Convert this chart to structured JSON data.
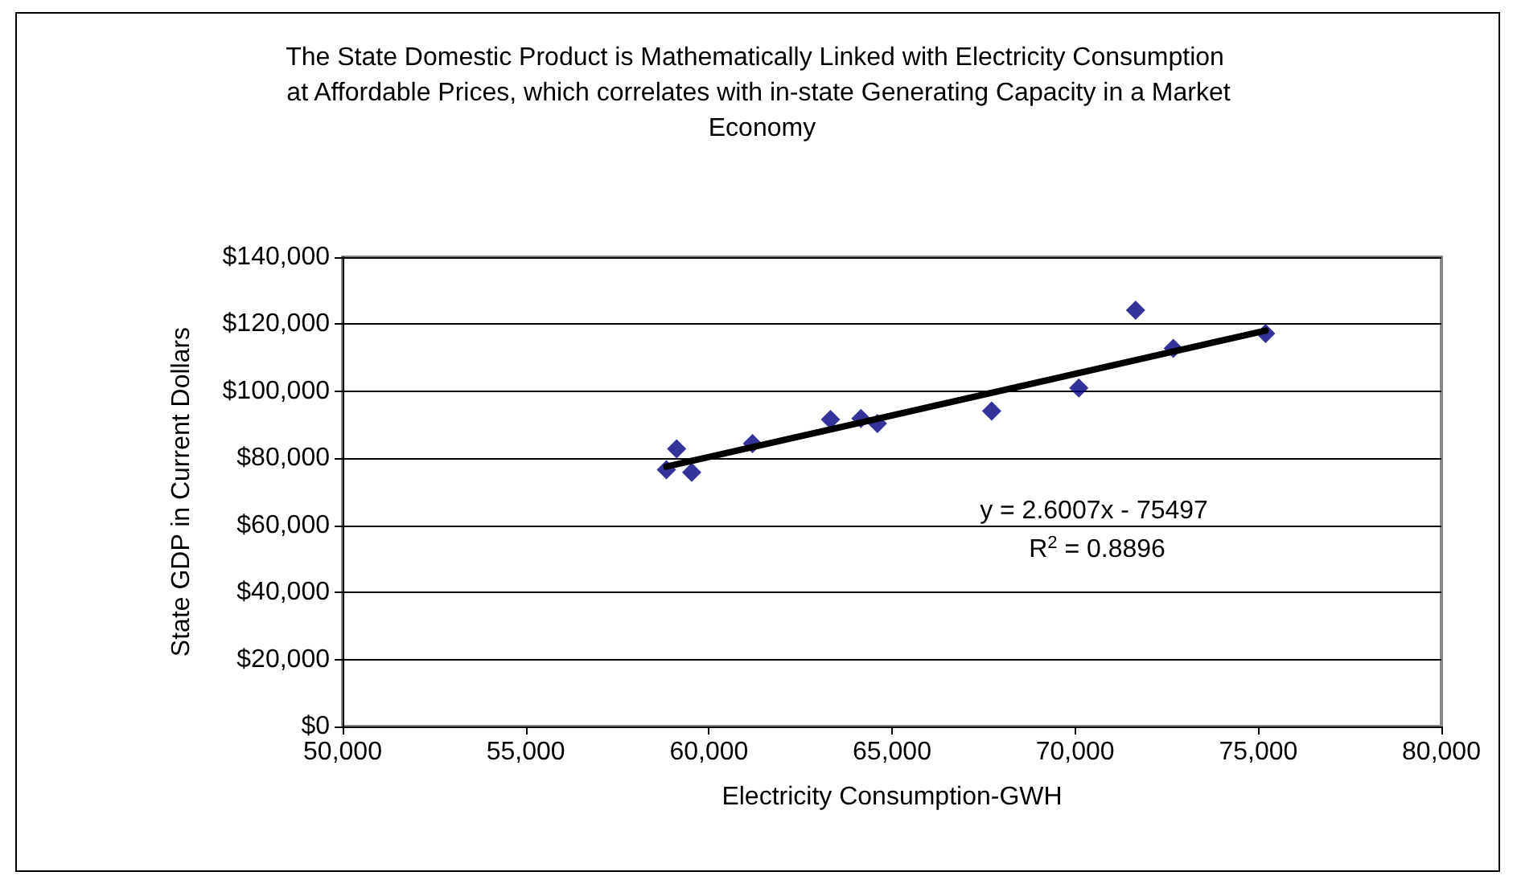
{
  "chart_data": {
    "type": "scatter",
    "title": "The State Domestic Product is Mathematically Linked with Electricity Consumption at Affordable Prices, which correlates with in-state Generating Capacity in a Market Economy",
    "xlabel": "Electricity Consumption-GWH",
    "ylabel": "State GDP in Current Dollars",
    "series": [
      {
        "color": "#000080",
        "marker": "diamond",
        "x": [
          58840,
          59120,
          59530,
          61190,
          63320,
          64150,
          64600,
          67720,
          70100,
          71650,
          72680,
          75200
        ],
        "values": [
          76600,
          82800,
          75800,
          84400,
          91600,
          91900,
          90400,
          94100,
          101000,
          124200,
          112800,
          117200
        ]
      },
      {
        "type": "line",
        "color": "#000000",
        "marker": "none",
        "line_style": "solid",
        "x": [
          58840,
          75200
        ],
        "values": [
          77500,
          118100
        ]
      }
    ],
    "xlim": [
      50000,
      80000
    ],
    "xticks": [
      {
        "value": 50000,
        "label": "50,000"
      },
      {
        "value": 55000,
        "label": "55,000"
      },
      {
        "value": 60000,
        "label": "60,000"
      },
      {
        "value": 65000,
        "label": "65,000"
      },
      {
        "value": 70000,
        "label": "70,000"
      },
      {
        "value": 75000,
        "label": "75,000"
      },
      {
        "value": 80000,
        "label": "80,000"
      }
    ],
    "ylim": [
      0,
      140000
    ],
    "yticks": [
      {
        "value": 0,
        "label": "$0"
      },
      {
        "value": 20000,
        "label": "$20,000"
      },
      {
        "value": 40000,
        "label": "$40,000"
      },
      {
        "value": 60000,
        "label": "$60,000"
      },
      {
        "value": 80000,
        "label": "$80,000"
      },
      {
        "value": 100000,
        "label": "$100,000"
      },
      {
        "value": 120000,
        "label": "$120,000"
      },
      {
        "value": 140000,
        "label": "$140,000"
      }
    ],
    "grid": "y",
    "annotations": [
      "y = 2.6007x - 75497",
      "R$^{2}$ = 0.8896"
    ]
  }
}
